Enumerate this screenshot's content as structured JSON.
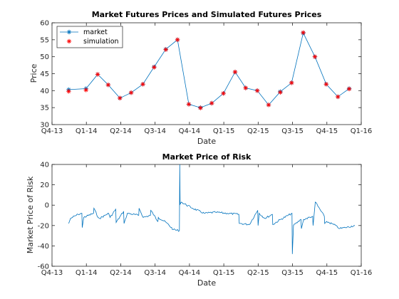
{
  "chart_data": [
    {
      "type": "line",
      "title": "Market Futures Prices and Simulated Futures Prices",
      "xlabel": "Date",
      "ylabel": "Price",
      "x_ticks": [
        "Q4-13",
        "Q1-14",
        "Q2-14",
        "Q3-14",
        "Q4-14",
        "Q1-15",
        "Q2-15",
        "Q3-15",
        "Q4-15",
        "Q1-16"
      ],
      "x_range": [
        "Q4-13",
        "Q1-16"
      ],
      "ylim": [
        30,
        60
      ],
      "y_ticks": [
        30,
        35,
        40,
        45,
        50,
        55,
        60
      ],
      "grid": false,
      "legend": "top-left",
      "x": [
        "2013-11-15",
        "2013-12-31",
        "2014-01-31",
        "2014-02-28",
        "2014-03-31",
        "2014-04-30",
        "2014-05-31",
        "2014-06-30",
        "2014-07-31",
        "2014-08-31",
        "2014-09-30",
        "2014-10-31",
        "2014-11-30",
        "2014-12-31",
        "2015-01-31",
        "2015-02-28",
        "2015-03-31",
        "2015-04-30",
        "2015-05-31",
        "2015-06-30",
        "2015-07-31",
        "2015-08-31",
        "2015-09-30",
        "2015-10-31",
        "2015-11-30",
        "2015-12-15"
      ],
      "series": [
        {
          "name": "market",
          "color": "#0072BD",
          "marker": "asterisk",
          "values": [
            40.3,
            40.6,
            44.8,
            41.7,
            37.8,
            39.4,
            41.9,
            47.0,
            52.2,
            55.0,
            36.0,
            35.0,
            36.3,
            39.2,
            45.5,
            40.8,
            40.0,
            35.8,
            39.7,
            42.3,
            57.0,
            50.0,
            41.9,
            38.2,
            40.6,
            null
          ]
        },
        {
          "name": "simulation",
          "color": "#FF0000",
          "marker": "star",
          "values": [
            39.8,
            40.2,
            44.8,
            41.7,
            37.8,
            39.4,
            41.9,
            46.9,
            52.1,
            55.0,
            36.0,
            34.9,
            36.3,
            39.2,
            45.5,
            40.8,
            40.0,
            35.8,
            39.5,
            42.3,
            57.1,
            50.0,
            41.9,
            38.2,
            40.5,
            null
          ]
        }
      ]
    },
    {
      "type": "line",
      "title": "Market Price of Risk",
      "xlabel": "Date",
      "ylabel": "Market Price of Risk",
      "x_ticks": [
        "Q4-13",
        "Q1-14",
        "Q2-14",
        "Q3-14",
        "Q4-14",
        "Q1-15",
        "Q2-15",
        "Q3-15",
        "Q4-15",
        "Q1-16"
      ],
      "x_range": [
        "Q4-13",
        "Q1-16"
      ],
      "ylim": [
        -60,
        40
      ],
      "y_ticks": [
        -60,
        -40,
        -20,
        0,
        20,
        40
      ],
      "grid": false,
      "series": [
        {
          "color": "#0072BD",
          "x": [
            "2013-11-15",
            "2013-11-20",
            "2013-12-10",
            "2013-12-20",
            "2013-12-21",
            "2013-12-25",
            "2014-01-20",
            "2014-01-21",
            "2014-02-01",
            "2014-02-05",
            "2014-03-01",
            "2014-03-05",
            "2014-03-20",
            "2014-03-21",
            "2014-04-10",
            "2014-04-11",
            "2014-04-20",
            "2014-05-20",
            "2014-05-21",
            "2014-06-01",
            "2014-06-20",
            "2014-06-21",
            "2014-07-10",
            "2014-07-11",
            "2014-08-01",
            "2014-08-20",
            "2014-09-05",
            "2014-09-06",
            "2014-09-07",
            "2014-09-10",
            "2014-10-10",
            "2014-11-10",
            "2014-12-10",
            "2015-01-10",
            "2015-02-10",
            "2015-02-11",
            "2015-03-10",
            "2015-04-01",
            "2015-04-02",
            "2015-04-05",
            "2015-04-20",
            "2015-05-10",
            "2015-05-11",
            "2015-06-01",
            "2015-07-01",
            "2015-07-02",
            "2015-07-05",
            "2015-07-25",
            "2015-07-26",
            "2015-08-01",
            "2015-08-25",
            "2015-08-26",
            "2015-09-01",
            "2015-09-25",
            "2015-09-26",
            "2015-10-01",
            "2015-10-25",
            "2015-11-05",
            "2015-11-20",
            "2015-12-15"
          ],
          "values": [
            -18,
            -13,
            -9,
            -8,
            -22,
            -12,
            -8,
            -3,
            -12,
            -13,
            -8,
            -12,
            -4,
            -17,
            -6,
            -18,
            -8,
            -10,
            -3,
            -12,
            -10,
            -5,
            -16,
            -12,
            -17,
            -24,
            -25,
            40,
            1,
            3,
            -3,
            -8,
            -7,
            -8,
            -9,
            -18,
            -19,
            -5,
            -20,
            -8,
            -13,
            -9,
            -19,
            -14,
            -8,
            -48,
            -20,
            -14,
            -23,
            -14,
            -11,
            -20,
            3,
            -11,
            -18,
            -16,
            -20,
            -23,
            -22,
            -20
          ]
        }
      ]
    }
  ]
}
